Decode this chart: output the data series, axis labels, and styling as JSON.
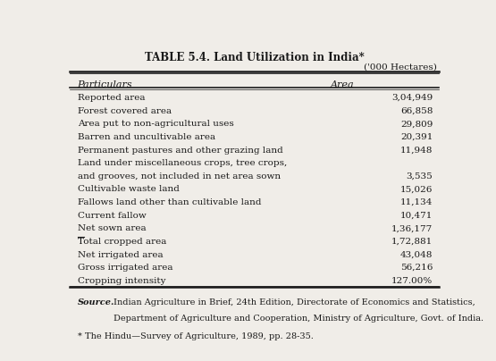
{
  "title": "TABLE 5.4. Land Utilization in India*",
  "unit_label": "('000 Hectares)",
  "col_headers": [
    "Particulars",
    "Area"
  ],
  "rows": [
    [
      "Reported area",
      "3,04,949"
    ],
    [
      "Forest covered area",
      "66,858"
    ],
    [
      "Area put to non-agricultural uses",
      "29,809"
    ],
    [
      "Barren and uncultivable area",
      "20,391"
    ],
    [
      "Permanent pastures and other grazing land",
      "11,948"
    ],
    [
      "Land under miscellaneous crops, tree crops,",
      ""
    ],
    [
      "and grooves, not included in net area sown",
      "3,535"
    ],
    [
      "Cultivable waste land",
      "15,026"
    ],
    [
      "Fallows land other than cultivable land",
      "11,134"
    ],
    [
      "Current fallow",
      "10,471"
    ],
    [
      "Net sown area",
      "1,36,177"
    ],
    [
      "Total cropped area",
      "1,72,881"
    ],
    [
      "Net irrigated area",
      "43,048"
    ],
    [
      "Gross irrigated area",
      "56,216"
    ],
    [
      "Cropping intensity",
      "127.00%"
    ]
  ],
  "total_cropped_index": 11,
  "source_bold": "Source.",
  "source_line1": "Indian Agriculture in Brief, 24th Edition, Directorate of Economics and Statistics,",
  "source_line2": "Department of Agriculture and Cooperation, Ministry of Agriculture, Govt. of India.",
  "footnote": "* The Hindu—Survey of Agriculture, 1989, pp. 28-35.",
  "bg_color": "#f0ede8",
  "text_color": "#1a1a1a",
  "line_color": "#1a1a1a"
}
